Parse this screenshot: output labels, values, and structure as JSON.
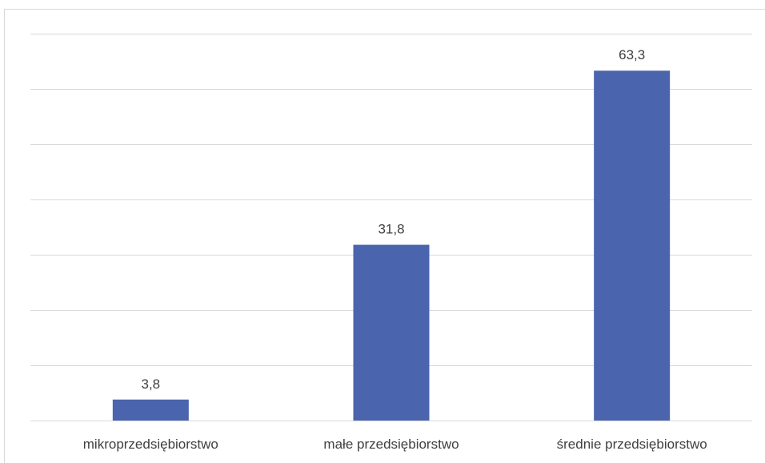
{
  "chart_data": {
    "type": "bar",
    "categories": [
      "mikroprzedsiębiorstwo",
      "małe przedsiębiorstwo",
      "średnie przedsiębiorstwo"
    ],
    "values": [
      3.8,
      31.8,
      63.3
    ],
    "data_labels": [
      "3,8",
      "31,8",
      "63,3"
    ],
    "ylim": [
      0,
      70
    ],
    "grid": true,
    "legend": "none",
    "title": "",
    "xlabel": "",
    "ylabel": "",
    "bar_color": "#4a65ae"
  }
}
